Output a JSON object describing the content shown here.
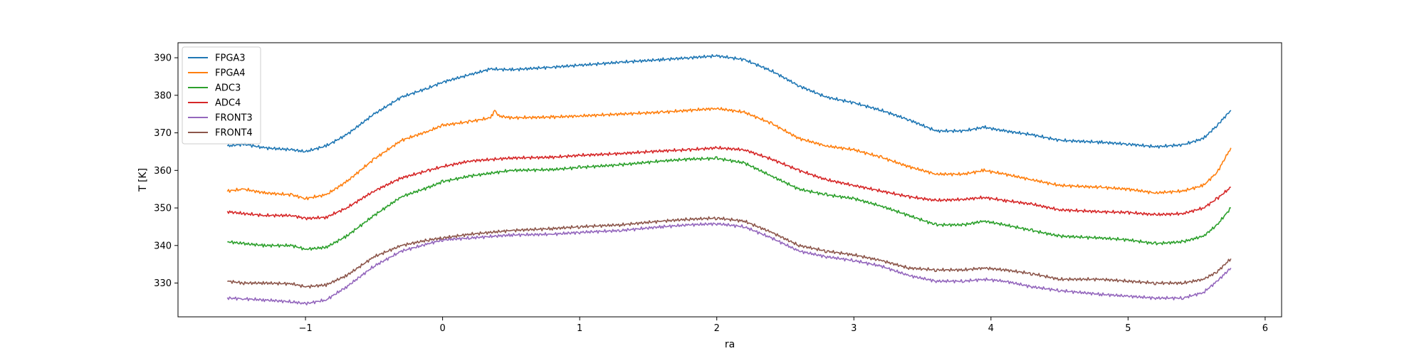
{
  "chart_data": {
    "type": "line",
    "title": "",
    "xlabel": "ra",
    "ylabel": "T [K]",
    "xlim": [
      -1.93,
      6.12
    ],
    "ylim": [
      321,
      394
    ],
    "xticks": [
      -1,
      0,
      1,
      2,
      3,
      4,
      5,
      6
    ],
    "xtick_labels": [
      "−1",
      "0",
      "1",
      "2",
      "3",
      "4",
      "5",
      "6"
    ],
    "yticks": [
      330,
      340,
      350,
      360,
      370,
      380,
      390
    ],
    "ytick_labels": [
      "330",
      "340",
      "350",
      "360",
      "370",
      "380",
      "390"
    ],
    "grid": false,
    "legend_position": "top-left",
    "series": [
      {
        "name": "FPGA3",
        "color": "#1f77b4",
        "x": [
          -1.57,
          -1.45,
          -1.3,
          -1.1,
          -1.0,
          -0.85,
          -0.7,
          -0.5,
          -0.3,
          -0.1,
          0.0,
          0.2,
          0.35,
          0.5,
          0.8,
          1.0,
          1.3,
          1.6,
          1.8,
          2.0,
          2.2,
          2.4,
          2.6,
          2.8,
          3.0,
          3.2,
          3.4,
          3.6,
          3.8,
          3.95,
          4.1,
          4.3,
          4.5,
          4.8,
          5.0,
          5.2,
          5.4,
          5.55,
          5.65,
          5.75
        ],
        "y": [
          366.5,
          367.0,
          366.0,
          365.5,
          365.0,
          366.5,
          369.5,
          375.0,
          379.5,
          382.0,
          383.5,
          385.5,
          387.0,
          386.8,
          387.5,
          388.0,
          388.8,
          389.5,
          390.0,
          390.5,
          389.5,
          386.5,
          382.5,
          379.5,
          378.0,
          376.0,
          373.5,
          370.5,
          370.5,
          371.5,
          370.5,
          369.5,
          368.0,
          367.5,
          367.0,
          366.3,
          366.8,
          368.5,
          372.0,
          376.0
        ]
      },
      {
        "name": "FPGA4",
        "color": "#ff7f0e",
        "x": [
          -1.57,
          -1.45,
          -1.3,
          -1.1,
          -1.0,
          -0.85,
          -0.7,
          -0.5,
          -0.3,
          -0.1,
          0.0,
          0.2,
          0.35,
          0.38,
          0.41,
          0.5,
          0.8,
          1.0,
          1.3,
          1.6,
          1.8,
          2.0,
          2.2,
          2.4,
          2.6,
          2.8,
          3.0,
          3.2,
          3.4,
          3.6,
          3.8,
          3.95,
          4.1,
          4.3,
          4.5,
          4.8,
          5.0,
          5.2,
          5.4,
          5.55,
          5.65,
          5.75
        ],
        "y": [
          354.5,
          355.0,
          354.0,
          353.5,
          352.5,
          353.5,
          357.0,
          363.0,
          368.0,
          370.5,
          372.0,
          373.0,
          374.0,
          376.0,
          374.5,
          374.0,
          374.2,
          374.5,
          375.0,
          375.5,
          376.0,
          376.5,
          375.5,
          372.5,
          368.5,
          366.5,
          365.5,
          363.5,
          361.0,
          359.0,
          359.0,
          360.0,
          359.0,
          357.5,
          356.0,
          355.5,
          355.0,
          354.0,
          354.5,
          356.0,
          359.5,
          366.0
        ]
      },
      {
        "name": "ADC3",
        "color": "#2ca02c",
        "x": [
          -1.57,
          -1.45,
          -1.3,
          -1.1,
          -1.0,
          -0.85,
          -0.7,
          -0.5,
          -0.3,
          -0.1,
          0.0,
          0.2,
          0.5,
          0.8,
          1.0,
          1.3,
          1.6,
          1.8,
          2.0,
          2.2,
          2.4,
          2.6,
          2.8,
          3.0,
          3.2,
          3.4,
          3.6,
          3.8,
          3.95,
          4.1,
          4.3,
          4.5,
          4.8,
          5.0,
          5.2,
          5.4,
          5.55,
          5.65,
          5.75
        ],
        "y": [
          341.0,
          340.5,
          340.0,
          340.0,
          339.0,
          339.5,
          342.5,
          348.0,
          353.0,
          355.5,
          357.0,
          358.5,
          360.0,
          360.2,
          360.8,
          361.5,
          362.5,
          363.0,
          363.2,
          362.0,
          358.5,
          355.0,
          353.5,
          352.5,
          350.5,
          348.0,
          345.5,
          345.5,
          346.5,
          345.5,
          344.0,
          342.5,
          342.0,
          341.5,
          340.5,
          341.0,
          342.5,
          345.5,
          350.0
        ]
      },
      {
        "name": "ADC4",
        "color": "#d62728",
        "x": [
          -1.57,
          -1.45,
          -1.3,
          -1.1,
          -1.0,
          -0.85,
          -0.7,
          -0.5,
          -0.3,
          -0.1,
          0.0,
          0.2,
          0.5,
          0.8,
          1.0,
          1.3,
          1.6,
          1.8,
          2.0,
          2.2,
          2.4,
          2.6,
          2.8,
          3.0,
          3.2,
          3.4,
          3.6,
          3.8,
          3.95,
          4.1,
          4.3,
          4.5,
          4.8,
          5.0,
          5.2,
          5.4,
          5.55,
          5.65,
          5.75
        ],
        "y": [
          349.0,
          348.5,
          348.0,
          348.0,
          347.2,
          347.5,
          350.0,
          354.5,
          358.0,
          360.0,
          361.0,
          362.5,
          363.3,
          363.5,
          364.0,
          364.5,
          365.2,
          365.5,
          366.0,
          365.5,
          363.0,
          360.0,
          357.5,
          356.0,
          354.5,
          353.0,
          352.0,
          352.3,
          352.8,
          352.0,
          351.0,
          349.5,
          349.0,
          348.8,
          348.2,
          348.5,
          350.0,
          352.5,
          355.5
        ]
      },
      {
        "name": "FRONT3",
        "color": "#9467bd",
        "x": [
          -1.57,
          -1.45,
          -1.3,
          -1.1,
          -1.0,
          -0.85,
          -0.7,
          -0.5,
          -0.3,
          -0.1,
          0.0,
          0.2,
          0.5,
          0.8,
          1.0,
          1.3,
          1.6,
          1.8,
          2.0,
          2.2,
          2.4,
          2.6,
          2.8,
          3.0,
          3.2,
          3.4,
          3.6,
          3.8,
          3.95,
          4.1,
          4.3,
          4.5,
          4.8,
          5.0,
          5.2,
          5.4,
          5.55,
          5.65,
          5.75
        ],
        "y": [
          326.0,
          325.8,
          325.5,
          325.0,
          324.5,
          325.5,
          329.0,
          334.5,
          338.5,
          340.5,
          341.5,
          342.0,
          342.8,
          343.0,
          343.5,
          344.0,
          345.0,
          345.5,
          345.8,
          345.0,
          342.0,
          338.5,
          337.0,
          336.0,
          334.5,
          332.0,
          330.5,
          330.5,
          331.0,
          330.5,
          329.0,
          328.0,
          327.0,
          326.5,
          326.0,
          326.0,
          327.5,
          330.5,
          334.0
        ]
      },
      {
        "name": "FRONT4",
        "color": "#8c564b",
        "x": [
          -1.57,
          -1.45,
          -1.3,
          -1.1,
          -1.0,
          -0.85,
          -0.7,
          -0.5,
          -0.3,
          -0.1,
          0.0,
          0.2,
          0.5,
          0.8,
          1.0,
          1.3,
          1.6,
          1.8,
          2.0,
          2.2,
          2.4,
          2.6,
          2.8,
          3.0,
          3.2,
          3.4,
          3.6,
          3.8,
          3.95,
          4.1,
          4.3,
          4.5,
          4.8,
          5.0,
          5.2,
          5.4,
          5.55,
          5.65,
          5.75
        ],
        "y": [
          330.5,
          330.0,
          330.0,
          329.8,
          329.0,
          329.5,
          332.0,
          337.0,
          340.0,
          341.5,
          342.0,
          343.0,
          344.0,
          344.5,
          345.0,
          345.5,
          346.5,
          347.0,
          347.3,
          346.5,
          343.5,
          340.0,
          338.5,
          337.5,
          336.0,
          334.0,
          333.5,
          333.5,
          334.0,
          333.5,
          332.5,
          331.0,
          331.0,
          330.5,
          330.0,
          330.0,
          331.0,
          333.0,
          336.5
        ]
      }
    ]
  }
}
